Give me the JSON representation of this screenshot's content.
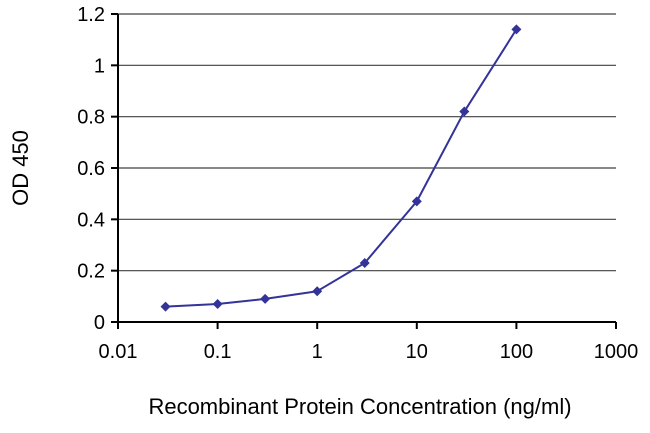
{
  "chart_data": {
    "type": "line",
    "title": "",
    "xlabel": "Recombinant Protein Concentration (ng/ml)",
    "ylabel": "OD 450",
    "x_scale": "log",
    "xlim": [
      0.01,
      1000
    ],
    "ylim": [
      0,
      1.2
    ],
    "x": [
      0.03,
      0.1,
      0.3,
      1,
      3,
      10,
      30,
      100
    ],
    "y": [
      0.06,
      0.07,
      0.09,
      0.12,
      0.23,
      0.47,
      0.82,
      1.14
    ],
    "x_ticks": [
      0.01,
      0.1,
      1,
      10,
      100,
      1000
    ],
    "x_tick_labels": [
      "0.01",
      "0.1",
      "1",
      "10",
      "100",
      "1000"
    ],
    "y_ticks": [
      0,
      0.2,
      0.4,
      0.6,
      0.8,
      1.0,
      1.2
    ],
    "y_tick_labels": [
      "0",
      "0.2",
      "0.4",
      "0.6",
      "0.8",
      "1",
      "1.2"
    ],
    "grid": "horizontal",
    "legend": "none",
    "marker": "diamond",
    "colors": {
      "line": "#333399",
      "marker": "#333399",
      "axis": "#000000",
      "grid": "#404040",
      "text": "#000000",
      "background": "#ffffff"
    }
  }
}
